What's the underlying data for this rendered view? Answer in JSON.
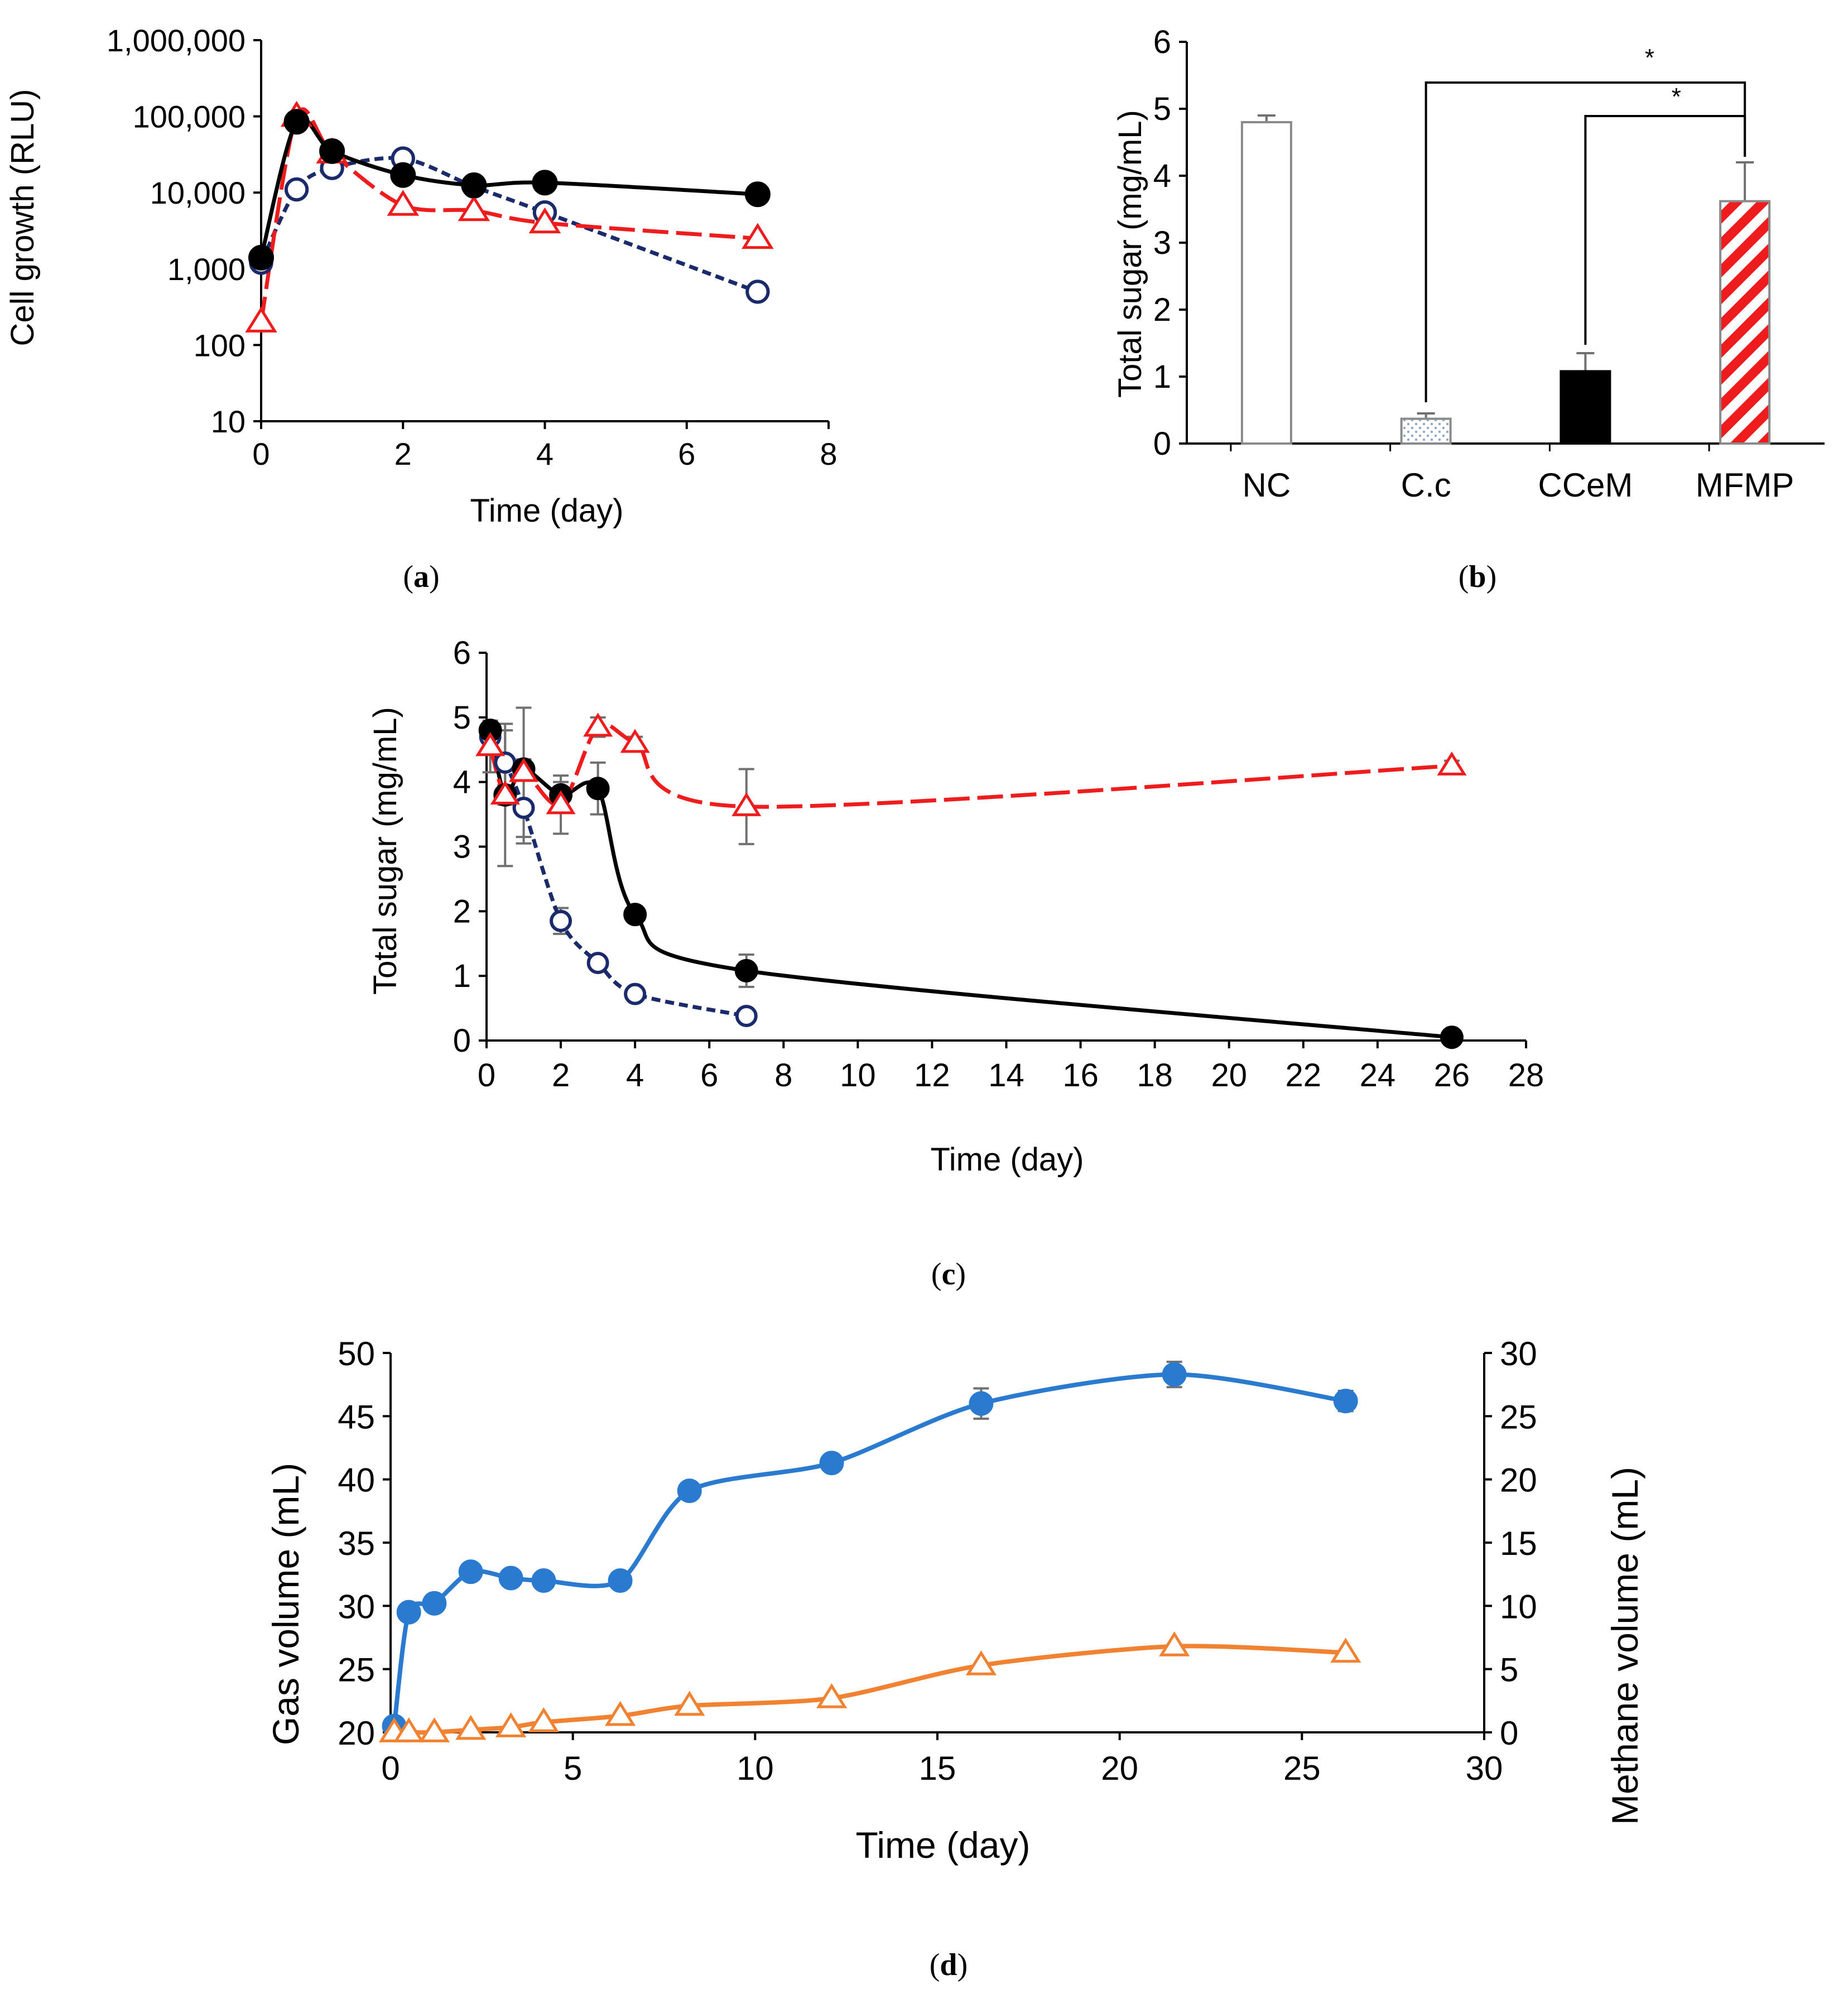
{
  "colors": {
    "black": "#000000",
    "red": "#ee1c1c",
    "navy": "#1b2a6b",
    "blue": "#2a7ad0",
    "orange": "#f08232",
    "errbar": "#707070",
    "white": "#ffffff"
  },
  "panels": {
    "a": {
      "label_open": "(",
      "label_letter": "a",
      "label_close": ")"
    },
    "b": {
      "label_open": "(",
      "label_letter": "b",
      "label_close": ")"
    },
    "c": {
      "label_open": "(",
      "label_letter": "c",
      "label_close": ")"
    },
    "d": {
      "label_open": "(",
      "label_letter": "d",
      "label_close": ")"
    }
  },
  "chart_data": [
    {
      "id": "a",
      "type": "line",
      "yscale": "log",
      "title": "",
      "xlabel": "Time (day)",
      "ylabel": "Cell growth (RLU)",
      "xlim": [
        0,
        8
      ],
      "ylim": [
        10,
        1000000
      ],
      "xticks": [
        "0",
        "2",
        "4",
        "6",
        "8"
      ],
      "yticks": [
        "10",
        "100",
        "1,000",
        "10,000",
        "100,000",
        "1,000,000"
      ],
      "series": [
        {
          "name": "filled circle, solid black",
          "marker": "filled-circle",
          "line": "solid",
          "color": "#000000",
          "x": [
            0,
            0.5,
            1,
            2,
            3,
            4,
            7
          ],
          "values": [
            1400,
            85000,
            35000,
            17000,
            12500,
            13500,
            9500
          ]
        },
        {
          "name": "open circle, navy dashed",
          "marker": "open-circle",
          "line": "dashed",
          "color": "#1b2a6b",
          "x": [
            0,
            0.5,
            1,
            2,
            3,
            4,
            7
          ],
          "values": [
            1200,
            11000,
            21000,
            28000,
            12000,
            5500,
            500
          ]
        },
        {
          "name": "open triangle, red long dash",
          "marker": "open-triangle",
          "line": "longdash",
          "color": "#ee1c1c",
          "x": [
            0,
            0.5,
            1,
            2,
            3,
            4,
            7
          ],
          "values": [
            200,
            100000,
            33000,
            6800,
            5800,
            4000,
            2500
          ]
        }
      ]
    },
    {
      "id": "b",
      "type": "bar",
      "title": "",
      "xlabel": "",
      "ylabel": "Total sugar (mg/mL)",
      "ylim": [
        0,
        6
      ],
      "yticks": [
        "0",
        "1",
        "2",
        "3",
        "4",
        "5",
        "6"
      ],
      "categories": [
        "NC",
        "C.c",
        "CCeM",
        "MFMP"
      ],
      "values": [
        4.8,
        0.37,
        1.08,
        3.62
      ],
      "errors": [
        0.1,
        0.08,
        0.27,
        0.58
      ],
      "fills": [
        "white",
        "dotted",
        "black",
        "red-hatched"
      ],
      "significance": [
        {
          "from": "C.c",
          "to": "MFMP",
          "label": "*"
        },
        {
          "from": "CCeM",
          "to": "MFMP",
          "label": "*"
        }
      ]
    },
    {
      "id": "c",
      "type": "line",
      "title": "",
      "xlabel": "Time (day)",
      "ylabel": "Total sugar (mg/mL)",
      "xlim": [
        0,
        28
      ],
      "ylim": [
        0,
        6
      ],
      "xticks": [
        "0",
        "2",
        "4",
        "6",
        "8",
        "10",
        "12",
        "14",
        "16",
        "18",
        "20",
        "22",
        "24",
        "26",
        "28"
      ],
      "yticks": [
        "0",
        "1",
        "2",
        "3",
        "4",
        "5",
        "6"
      ],
      "series": [
        {
          "name": "filled circle, solid black",
          "marker": "filled-circle",
          "line": "solid",
          "color": "#000000",
          "x": [
            0.1,
            0.5,
            1,
            2,
            3,
            4,
            7,
            26
          ],
          "values": [
            4.8,
            3.8,
            4.2,
            3.8,
            3.9,
            1.95,
            1.08,
            0.05
          ],
          "errors": [
            0.1,
            0.15,
            0.15,
            0.2,
            0.4,
            0.12,
            0.25,
            0.03
          ]
        },
        {
          "name": "open circle, navy dashed",
          "marker": "open-circle",
          "line": "dashed",
          "color": "#1b2a6b",
          "x": [
            0.1,
            0.5,
            1,
            2,
            3,
            4,
            7
          ],
          "values": [
            4.7,
            4.3,
            3.6,
            1.85,
            1.2,
            0.72,
            0.38
          ],
          "errors": [
            0.2,
            0.5,
            0.55,
            0.2,
            0.08,
            0.06,
            0.05
          ]
        },
        {
          "name": "open triangle, red long dash",
          "marker": "open-triangle",
          "line": "longdash",
          "color": "#ee1c1c",
          "x": [
            0.1,
            0.5,
            1,
            2,
            3,
            4,
            7,
            26
          ],
          "values": [
            4.55,
            3.8,
            4.15,
            3.65,
            4.85,
            4.6,
            3.62,
            4.25
          ],
          "errors": [
            0.4,
            1.1,
            1.0,
            0.45,
            0.15,
            0.1,
            0.58,
            0.08
          ]
        }
      ]
    },
    {
      "id": "d",
      "type": "line",
      "title": "",
      "xlabel": "Time (day)",
      "ylabel": "Gas volume (mL)",
      "y2label": "Methane volume (mL)",
      "xlim": [
        0,
        30
      ],
      "ylim": [
        20,
        50
      ],
      "y2lim": [
        0,
        30
      ],
      "xticks": [
        "0",
        "5",
        "10",
        "15",
        "20",
        "25",
        "30"
      ],
      "yticks": [
        "20",
        "25",
        "30",
        "35",
        "40",
        "45",
        "50"
      ],
      "y2ticks": [
        "0",
        "5",
        "10",
        "15",
        "20",
        "25",
        "30"
      ],
      "series": [
        {
          "name": "Gas volume",
          "axis": "left",
          "marker": "filled-circle",
          "color": "#2a7ad0",
          "x": [
            0.1,
            0.5,
            1.2,
            2.2,
            3.3,
            4.2,
            6.3,
            8.2,
            12.1,
            16.2,
            21.5,
            26.2
          ],
          "values": [
            20.5,
            29.5,
            30.2,
            32.7,
            32.2,
            32.0,
            32.0,
            39.1,
            41.3,
            46.0,
            48.3,
            46.2
          ],
          "errors": [
            0,
            0,
            0,
            0,
            0,
            0,
            0,
            0,
            0.6,
            1.2,
            1.0,
            0.8
          ]
        },
        {
          "name": "Methane volume",
          "axis": "right",
          "marker": "open-triangle",
          "color": "#f08232",
          "x": [
            0.1,
            0.5,
            1.2,
            2.2,
            3.3,
            4.2,
            6.3,
            8.2,
            12.1,
            16.2,
            21.5,
            26.2
          ],
          "values": [
            0,
            0,
            0,
            0.2,
            0.4,
            0.8,
            1.3,
            2.1,
            2.7,
            5.3,
            6.8,
            6.3
          ]
        }
      ]
    }
  ]
}
